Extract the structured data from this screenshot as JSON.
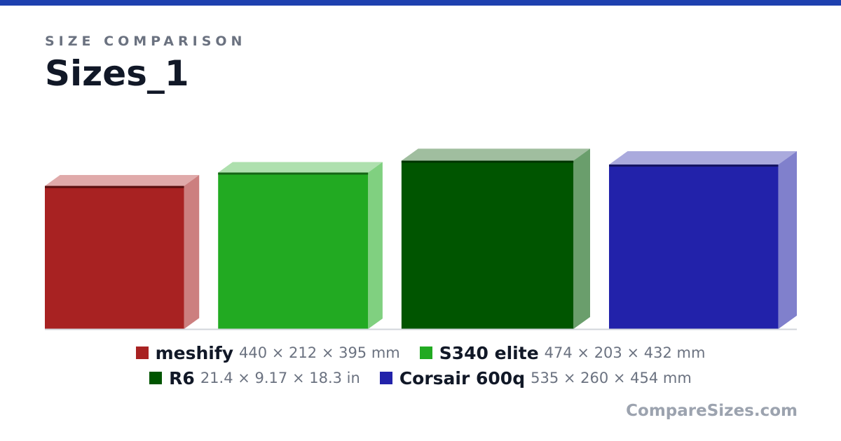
{
  "header": {
    "eyebrow": "SIZE COMPARISON",
    "title": "Sizes_1"
  },
  "brand": "CompareSizes.com",
  "colors": {
    "top_bar": "#1e40af",
    "baseline": "#d1d5db"
  },
  "chart_data": {
    "type": "bar",
    "style": "3d-box",
    "categories": [
      "meshify",
      "S340 elite",
      "R6",
      "Corsair 600q"
    ],
    "series": [
      {
        "values": [
          395,
          432,
          465,
          454
        ],
        "dimension": "height",
        "unit": "mm"
      }
    ],
    "items": [
      {
        "name": "meshify",
        "width": 440,
        "depth": 212,
        "height": 395,
        "unit": "mm",
        "dims_label": "440 × 212 × 395 mm",
        "color": "#a82222",
        "top_color": "#e0aaaa",
        "side_color": "#cc7f7f",
        "edge_color": "#5a1010"
      },
      {
        "name": "S340 elite",
        "width": 474,
        "depth": 203,
        "height": 432,
        "unit": "mm",
        "dims_label": "474 × 203 × 432 mm",
        "color": "#22aa22",
        "top_color": "#aee0ae",
        "side_color": "#80d080",
        "edge_color": "#156515"
      },
      {
        "name": "R6",
        "width": 21.4,
        "depth": 9.17,
        "height": 18.3,
        "unit": "in",
        "width_mm": 543.6,
        "depth_mm": 232.9,
        "height_mm": 464.8,
        "dims_label": "21.4 × 9.17 × 18.3 in",
        "color": "#005500",
        "top_color": "#a0be9f",
        "side_color": "#6a9e6c",
        "edge_color": "#003300"
      },
      {
        "name": "Corsair 600q",
        "width": 535,
        "depth": 260,
        "height": 454,
        "unit": "mm",
        "dims_label": "535 × 260 × 454 mm",
        "color": "#2222aa",
        "top_color": "#aaaadd",
        "side_color": "#8080cc",
        "edge_color": "#141460"
      }
    ],
    "grid": false,
    "legend_position": "bottom-center"
  },
  "legend_rows": [
    [
      0,
      1
    ],
    [
      2,
      3
    ]
  ]
}
